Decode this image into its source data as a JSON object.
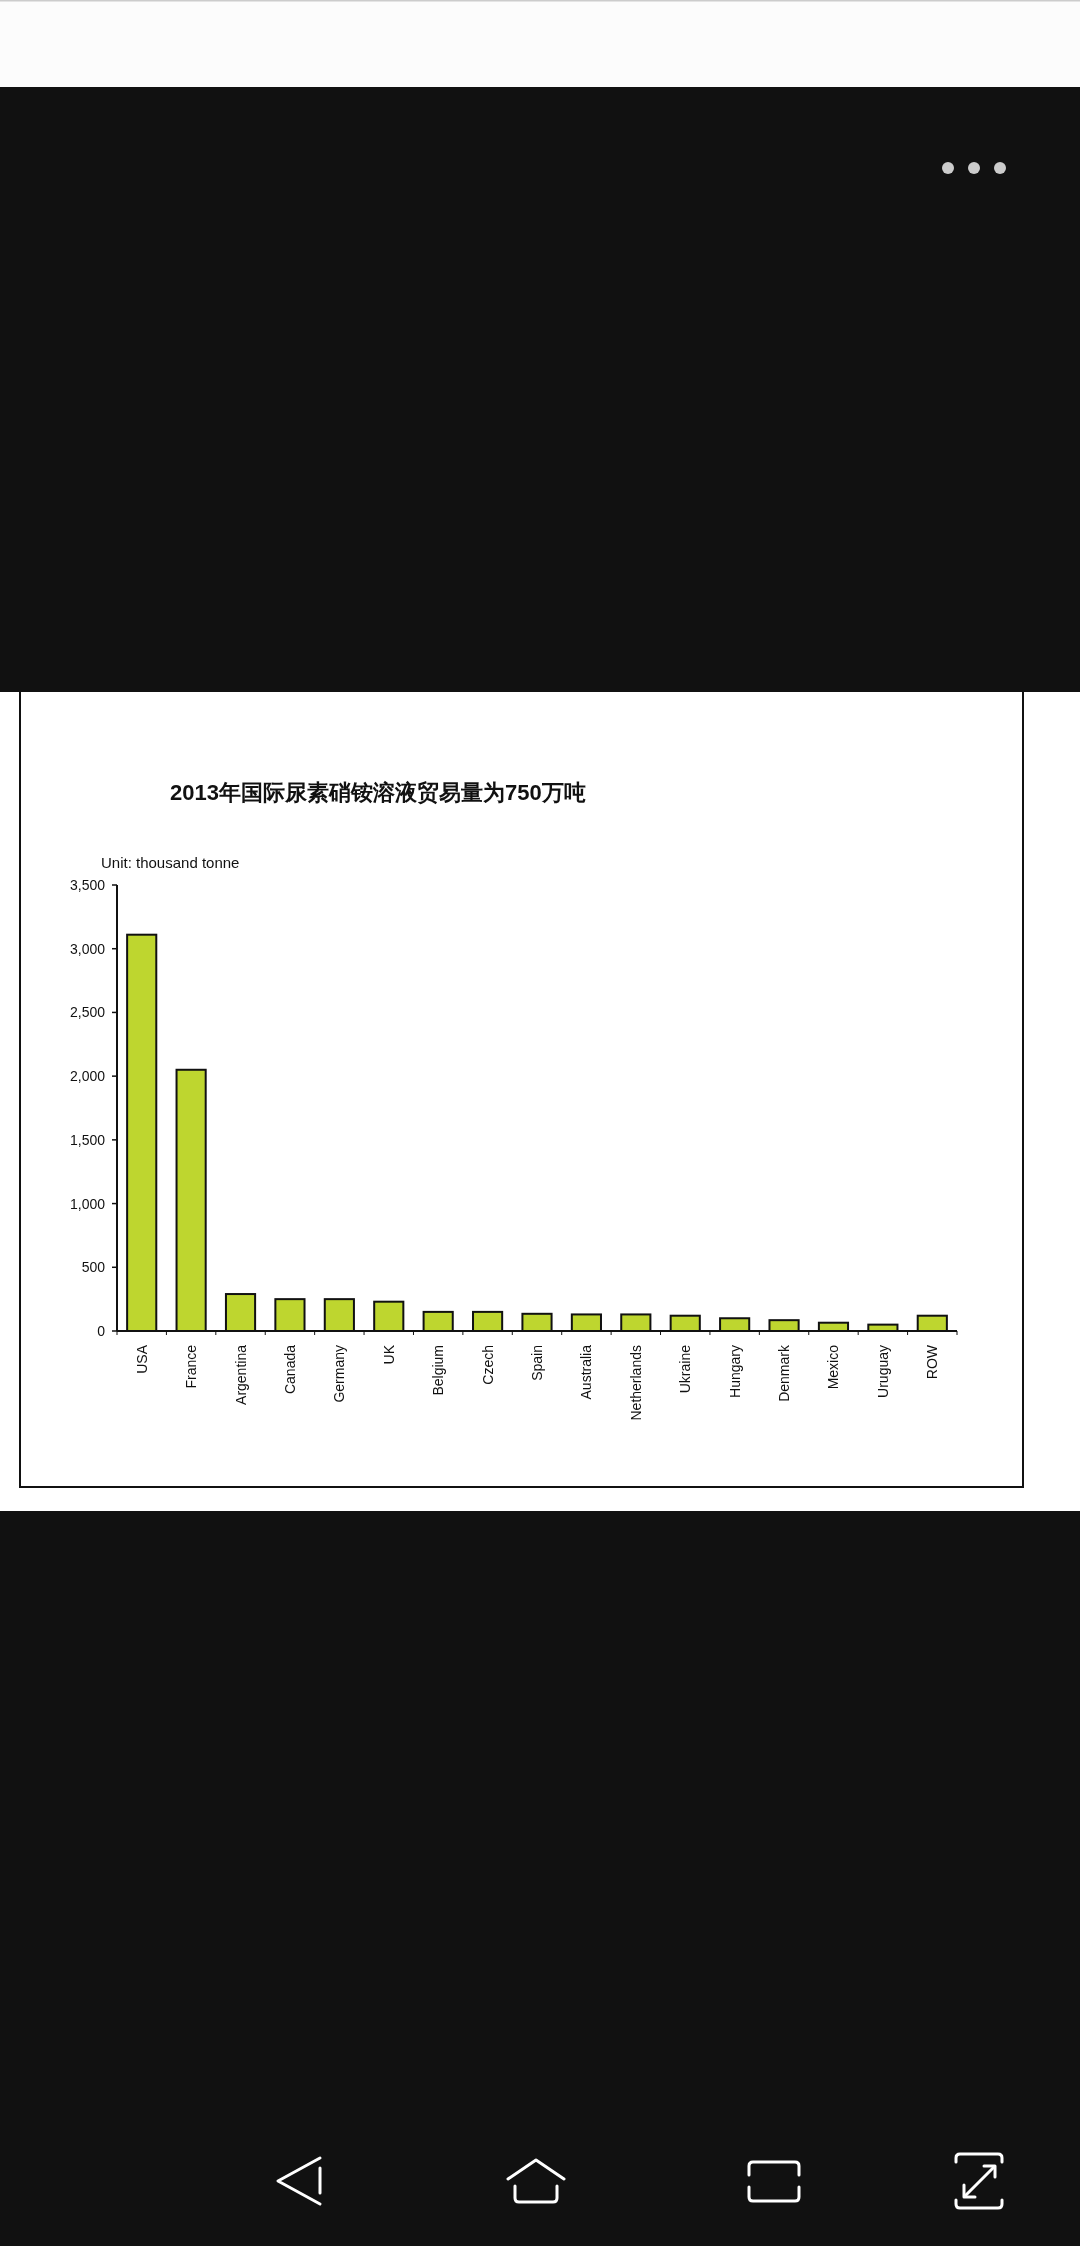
{
  "chart_data": {
    "type": "bar",
    "title": "2013年国际尿素硝铵溶液贸易量为750万吨",
    "ylabel": "Unit: thousand tonne",
    "categories": [
      "USA",
      "France",
      "Argentina",
      "Canada",
      "Germany",
      "UK",
      "Belgium",
      "Czech",
      "Spain",
      "Australia",
      "Netherlands",
      "Ukraine",
      "Hungary",
      "Denmark",
      "Mexico",
      "Uruguay",
      "ROW"
    ],
    "values": [
      3110,
      2050,
      290,
      250,
      250,
      230,
      150,
      150,
      135,
      130,
      130,
      120,
      100,
      85,
      65,
      50,
      120
    ],
    "color": "#bed62f",
    "ylim": [
      0,
      3500
    ],
    "yticks": [
      0,
      500,
      {
        "value": 1000,
        "label": "1,000"
      },
      {
        "value": 1500,
        "label": "1,500"
      },
      {
        "value": 2000,
        "label": "2,000"
      },
      {
        "value": 2500,
        "label": "2,500"
      },
      {
        "value": 3000,
        "label": "3,000"
      },
      {
        "value": 3500,
        "label": "3,500"
      }
    ]
  }
}
